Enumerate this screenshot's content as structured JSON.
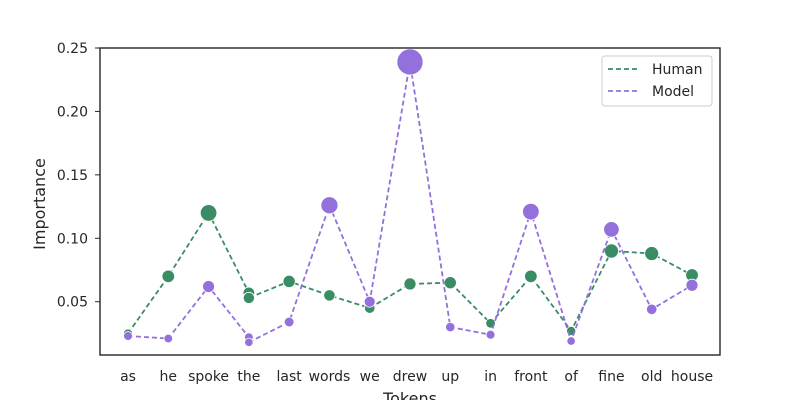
{
  "chart_data": {
    "type": "line",
    "title": "",
    "xlabel": "Tokens",
    "ylabel": "Importance",
    "categories": [
      "as",
      "he",
      "spoke",
      "the",
      "last",
      "words",
      "we",
      "drew",
      "up",
      "in",
      "front",
      "of",
      "fine",
      "old",
      "house"
    ],
    "x": [
      0,
      1,
      2,
      3,
      3,
      4,
      5,
      6,
      7,
      8,
      9,
      10,
      11,
      12,
      13,
      14
    ],
    "x_tick_positions": [
      0,
      1,
      2,
      3,
      4,
      5,
      6,
      7,
      8,
      9,
      10,
      11,
      12,
      13,
      14
    ],
    "ylim": [
      0.008,
      0.25
    ],
    "yticks": [
      0.05,
      0.1,
      0.15,
      0.2,
      0.25
    ],
    "ytick_labels": [
      "0.05",
      "0.10",
      "0.15",
      "0.20",
      "0.25"
    ],
    "grid": false,
    "legend_position": "top-right",
    "series": [
      {
        "name": "Human",
        "color": "#3a8c64",
        "line_style": "dashed",
        "values": [
          0.025,
          0.07,
          0.12,
          0.057,
          0.053,
          0.066,
          0.055,
          0.045,
          0.064,
          0.065,
          0.033,
          0.07,
          0.027,
          0.09,
          0.088,
          0.071
        ]
      },
      {
        "name": "Model",
        "color": "#9370db",
        "line_style": "dashed",
        "values": [
          0.023,
          0.021,
          0.062,
          0.022,
          0.018,
          0.034,
          0.126,
          0.05,
          0.239,
          0.03,
          0.024,
          0.121,
          0.019,
          0.107,
          0.044,
          0.063
        ]
      }
    ]
  }
}
